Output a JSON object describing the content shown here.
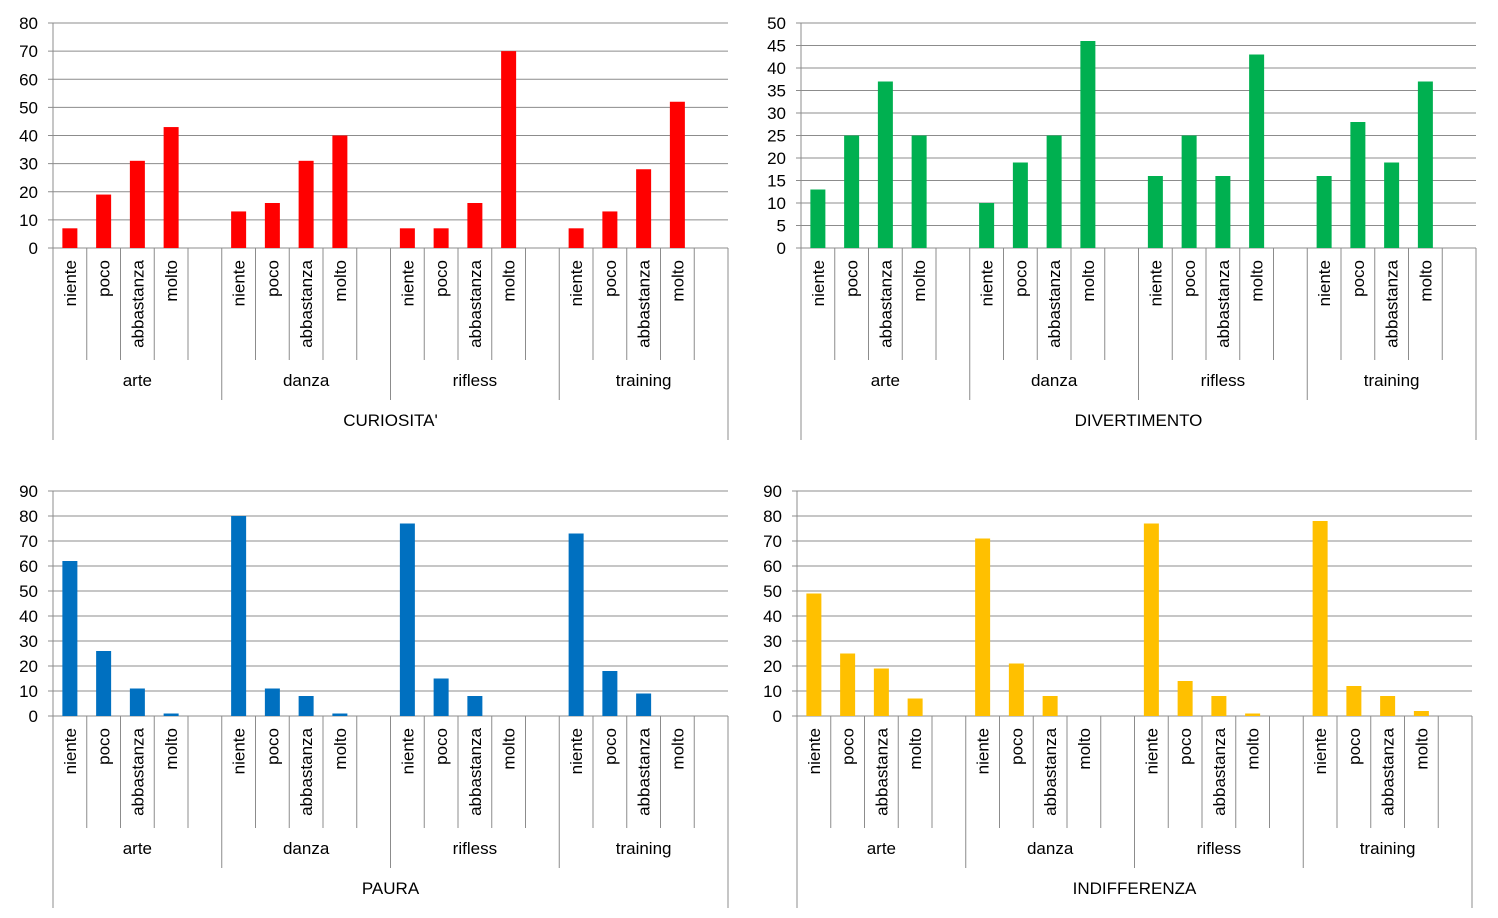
{
  "chart_data": [
    {
      "type": "bar",
      "title": "",
      "xlabel": "CURIOSITA'",
      "ylabel": "",
      "ylim": [
        0,
        80
      ],
      "ytick_step": 10,
      "grid": true,
      "legend": "none",
      "color": "#ff0000",
      "groups": [
        "arte",
        "danza",
        "rifless",
        "training"
      ],
      "levels": [
        "niente",
        "poco",
        "abbastanza",
        "molto"
      ],
      "series": [
        {
          "values": [
            7,
            19,
            31,
            43,
            13,
            16,
            31,
            40,
            7,
            7,
            16,
            70,
            7,
            13,
            28,
            52
          ]
        }
      ]
    },
    {
      "type": "bar",
      "title": "",
      "xlabel": "DIVERTIMENTO",
      "ylabel": "",
      "ylim": [
        0,
        50
      ],
      "ytick_step": 5,
      "grid": true,
      "legend": "none",
      "color": "#00b050",
      "groups": [
        "arte",
        "danza",
        "rifless",
        "training"
      ],
      "levels": [
        "niente",
        "poco",
        "abbastanza",
        "molto"
      ],
      "series": [
        {
          "values": [
            13,
            25,
            37,
            25,
            10,
            19,
            25,
            46,
            16,
            25,
            16,
            43,
            16,
            28,
            19,
            37
          ]
        }
      ]
    },
    {
      "type": "bar",
      "title": "",
      "xlabel": "PAURA",
      "ylabel": "",
      "ylim": [
        0,
        90
      ],
      "ytick_step": 10,
      "grid": true,
      "legend": "none",
      "color": "#0070c0",
      "groups": [
        "arte",
        "danza",
        "rifless",
        "training"
      ],
      "levels": [
        "niente",
        "poco",
        "abbastanza",
        "molto"
      ],
      "series": [
        {
          "values": [
            62,
            26,
            11,
            1,
            80,
            11,
            8,
            1,
            77,
            15,
            8,
            0,
            73,
            18,
            9,
            0
          ]
        }
      ]
    },
    {
      "type": "bar",
      "title": "",
      "xlabel": "INDIFFERENZA",
      "ylabel": "",
      "ylim": [
        0,
        90
      ],
      "ytick_step": 10,
      "grid": true,
      "legend": "none",
      "color": "#ffc000",
      "groups": [
        "arte",
        "danza",
        "rifless",
        "training"
      ],
      "levels": [
        "niente",
        "poco",
        "abbastanza",
        "molto"
      ],
      "series": [
        {
          "values": [
            49,
            25,
            19,
            7,
            71,
            21,
            8,
            0,
            77,
            14,
            8,
            1,
            78,
            12,
            8,
            2
          ]
        }
      ]
    }
  ]
}
